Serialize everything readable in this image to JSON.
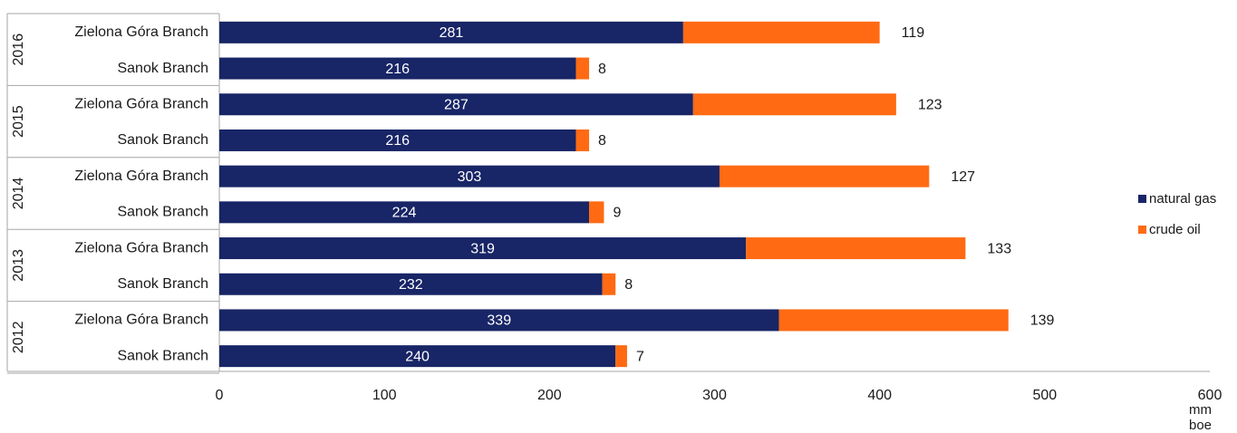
{
  "chart_data": {
    "type": "bar",
    "orientation": "horizontal",
    "stacked": true,
    "groups": [
      {
        "year": "2016",
        "rows": [
          {
            "category": "Zielona Góra Branch",
            "natural_gas": 281,
            "crude_oil": 119
          },
          {
            "category": "Sanok Branch",
            "natural_gas": 216,
            "crude_oil": 8
          }
        ]
      },
      {
        "year": "2015",
        "rows": [
          {
            "category": "Zielona Góra Branch",
            "natural_gas": 287,
            "crude_oil": 123
          },
          {
            "category": "Sanok Branch",
            "natural_gas": 216,
            "crude_oil": 8
          }
        ]
      },
      {
        "year": "2014",
        "rows": [
          {
            "category": "Zielona Góra Branch",
            "natural_gas": 303,
            "crude_oil": 127
          },
          {
            "category": "Sanok Branch",
            "natural_gas": 224,
            "crude_oil": 9
          }
        ]
      },
      {
        "year": "2013",
        "rows": [
          {
            "category": "Zielona Góra Branch",
            "natural_gas": 319,
            "crude_oil": 133
          },
          {
            "category": "Sanok Branch",
            "natural_gas": 232,
            "crude_oil": 8
          }
        ]
      },
      {
        "year": "2012",
        "rows": [
          {
            "category": "Zielona Góra Branch",
            "natural_gas": 339,
            "crude_oil": 139
          },
          {
            "category": "Sanok Branch",
            "natural_gas": 240,
            "crude_oil": 7
          }
        ]
      }
    ],
    "series": [
      {
        "key": "natural_gas",
        "name": "natural gas",
        "color": "#182566"
      },
      {
        "key": "crude_oil",
        "name": "crude oil",
        "color": "#ff6a13"
      }
    ],
    "x_ticks": [
      0,
      100,
      200,
      300,
      400,
      500,
      600
    ],
    "xlim": [
      0,
      600
    ],
    "xlabel": "mm boe",
    "legend_position": "right",
    "grid": false
  }
}
